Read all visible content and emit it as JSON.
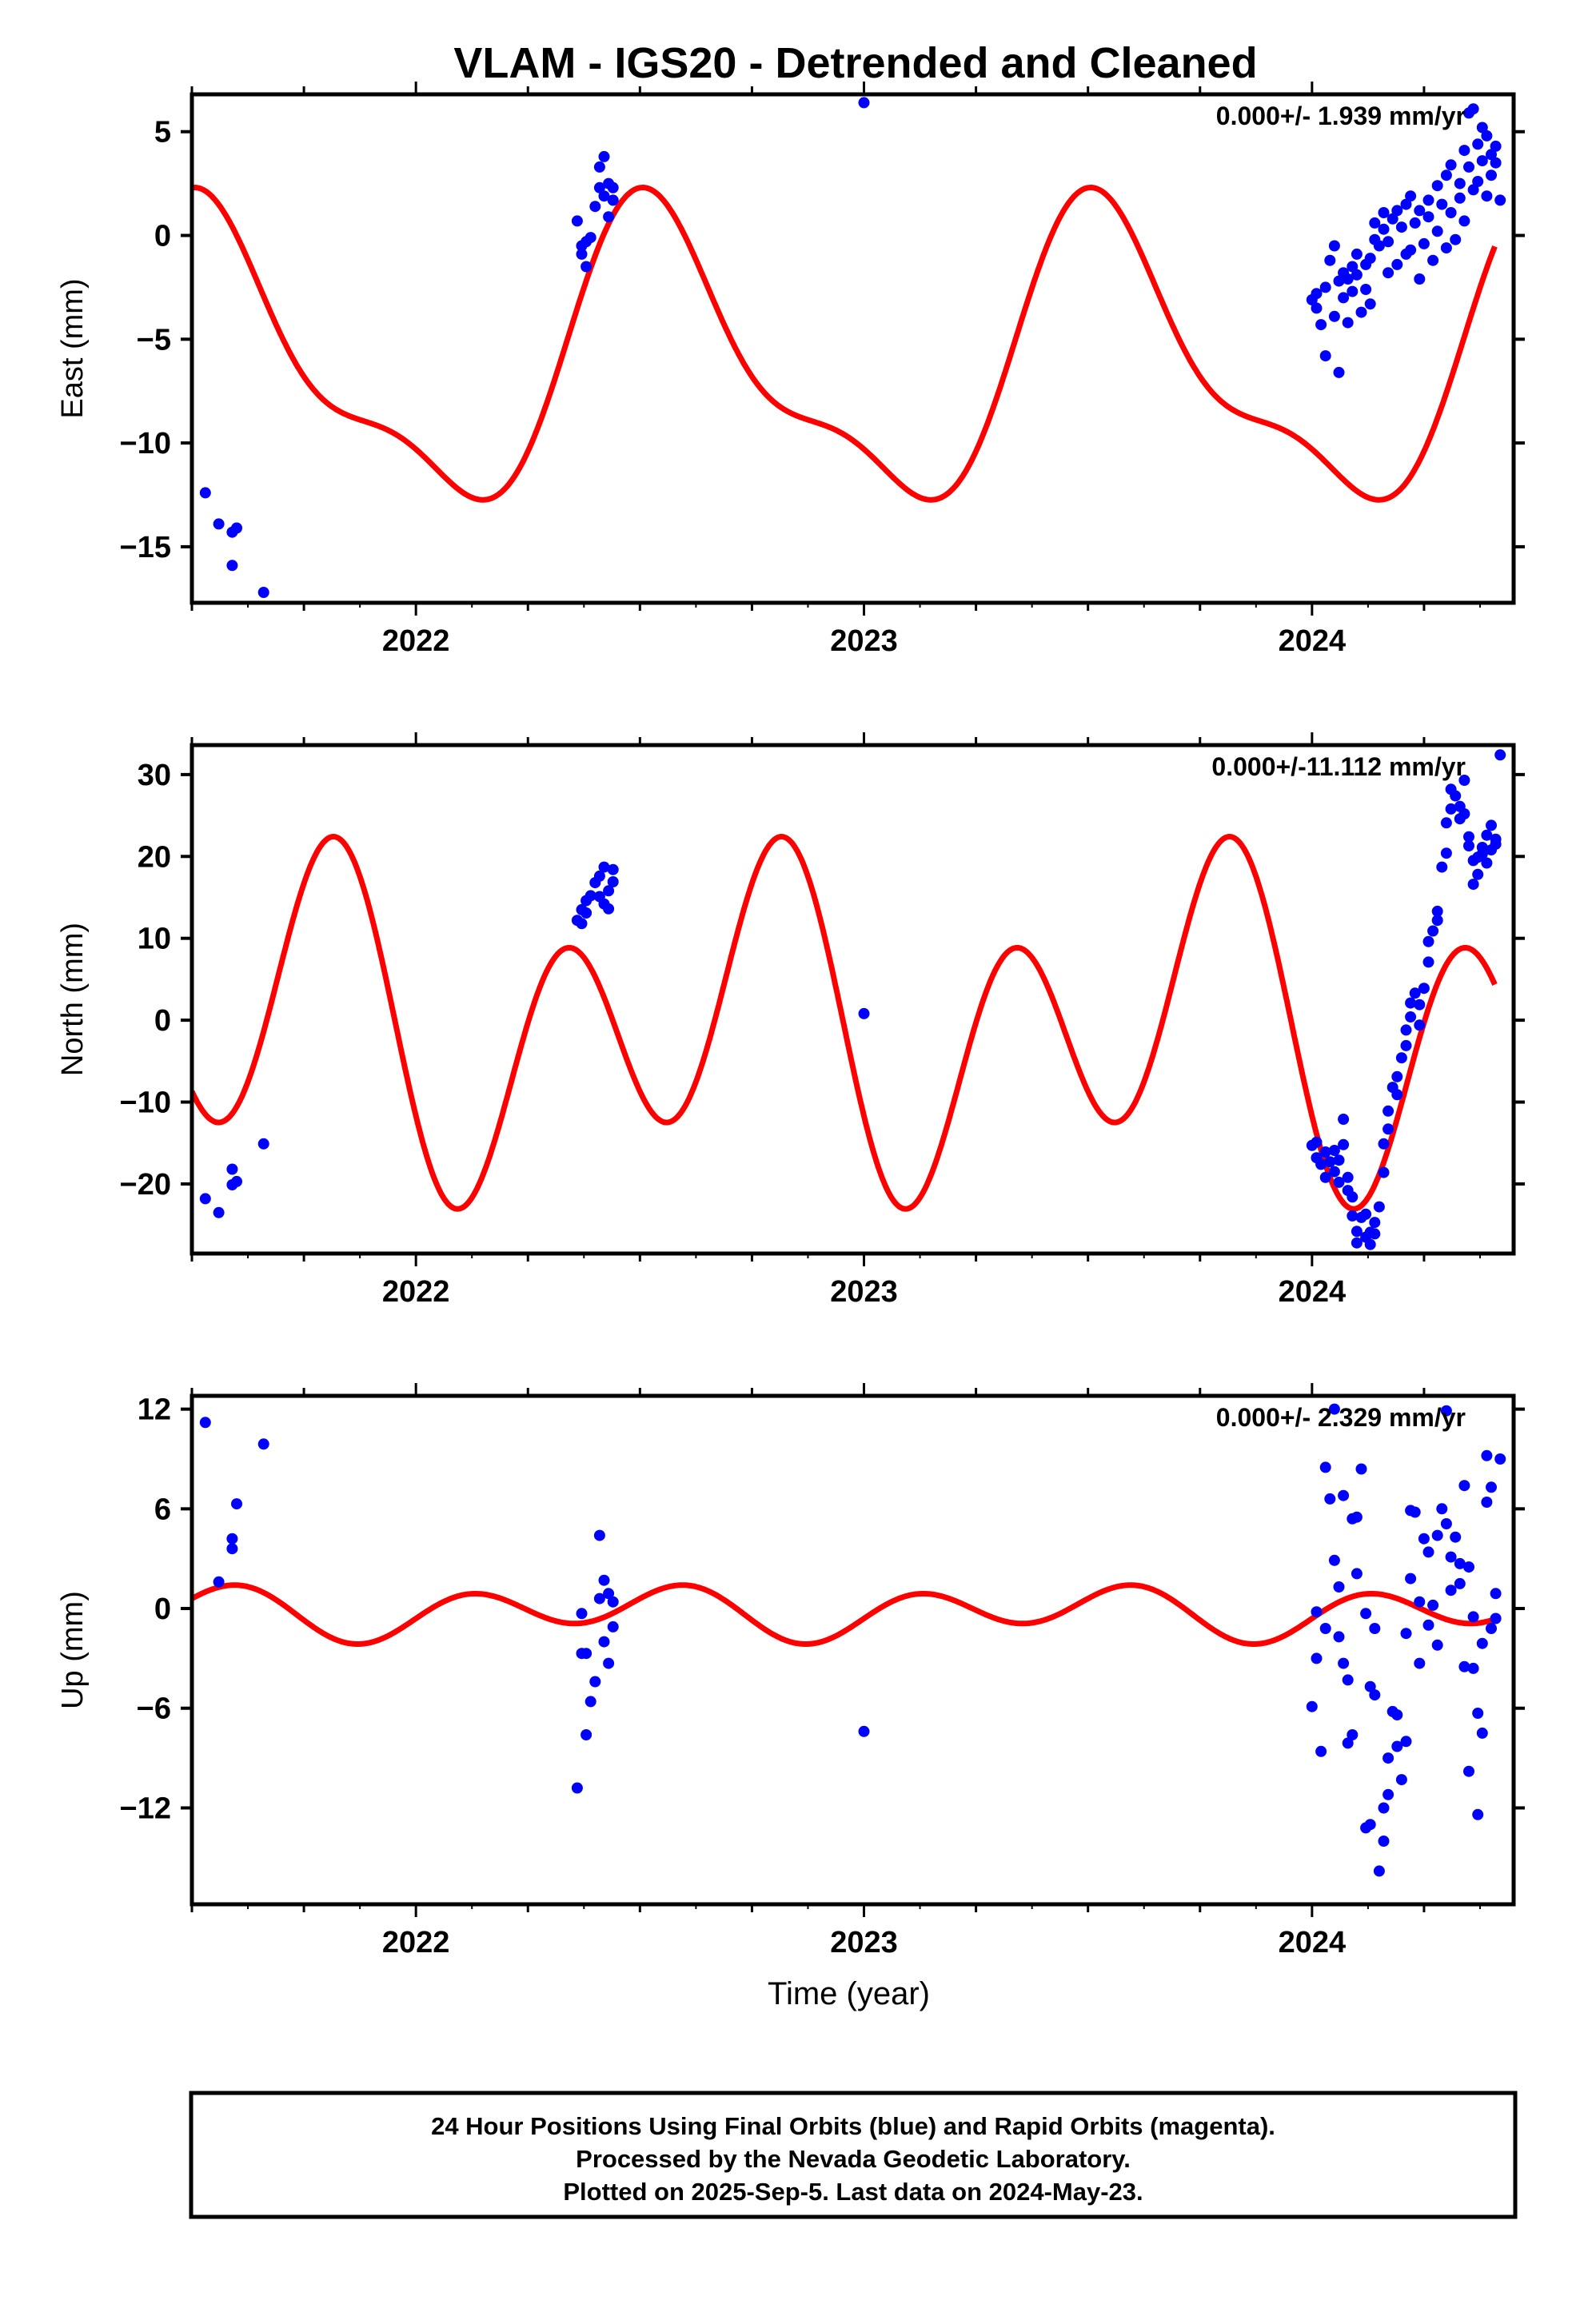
{
  "title": "VLAM - IGS20 - Detrended and Cleaned",
  "footer": {
    "lines": [
      "24 Hour Positions Using Final Orbits (blue) and Rapid Orbits (magenta).",
      "Processed by the Nevada Geodetic Laboratory.",
      "Plotted on 2025-Sep-5. Last data on 2024-May-23."
    ]
  },
  "colors": {
    "points": "#0000ff",
    "model": "#ff0000",
    "frame": "#000000"
  },
  "chart_data": [
    {
      "type": "scatter",
      "ylabel": "East (mm)",
      "xlabel": "",
      "rate_text": "0.000+/- 1.939 mm/yr",
      "xlim": [
        2021.5,
        2024.45
      ],
      "ylim": [
        -17.7,
        6.8
      ],
      "yticks": [
        5,
        0,
        -5,
        -10,
        -15
      ],
      "ytick_labels": [
        "5",
        "0",
        "−5",
        "−10",
        "−15"
      ],
      "xticks": [
        2022,
        2023,
        2024
      ],
      "xtick_labels": [
        "2022",
        "2023",
        "2024"
      ],
      "points_x": [
        2021.53,
        2021.56,
        2021.59,
        2021.59,
        2021.6,
        2021.66,
        2022.36,
        2022.37,
        2022.37,
        2022.38,
        2022.38,
        2022.39,
        2022.4,
        2022.41,
        2022.41,
        2022.42,
        2022.42,
        2022.43,
        2022.43,
        2022.44,
        2022.44,
        2023.0,
        2024.0,
        2024.01,
        2024.01,
        2024.02,
        2024.03,
        2024.03,
        2024.04,
        2024.05,
        2024.05,
        2024.06,
        2024.06,
        2024.07,
        2024.07,
        2024.08,
        2024.08,
        2024.09,
        2024.09,
        2024.1,
        2024.1,
        2024.11,
        2024.12,
        2024.12,
        2024.13,
        2024.13,
        2024.14,
        2024.14,
        2024.15,
        2024.16,
        2024.16,
        2024.17,
        2024.17,
        2024.18,
        2024.19,
        2024.19,
        2024.2,
        2024.21,
        2024.21,
        2024.22,
        2024.22,
        2024.23,
        2024.24,
        2024.24,
        2024.25,
        2024.26,
        2024.26,
        2024.27,
        2024.28,
        2024.28,
        2024.29,
        2024.3,
        2024.3,
        2024.31,
        2024.31,
        2024.32,
        2024.33,
        2024.33,
        2024.34,
        2024.34,
        2024.35,
        2024.35,
        2024.36,
        2024.36,
        2024.37,
        2024.37,
        2024.38,
        2024.38,
        2024.39,
        2024.39,
        2024.4,
        2024.4,
        2024.41,
        2024.41,
        2024.42
      ],
      "points_y": [
        -12.4,
        -13.9,
        -14.3,
        -15.9,
        -14.1,
        -17.2,
        0.7,
        -0.5,
        -0.9,
        -0.3,
        -1.5,
        -0.1,
        1.4,
        2.3,
        3.3,
        3.8,
        1.9,
        2.5,
        0.9,
        1.7,
        2.3,
        6.4,
        -3.1,
        -3.5,
        -2.8,
        -4.3,
        -5.8,
        -2.5,
        -1.2,
        -0.5,
        -3.9,
        -6.6,
        -2.2,
        -1.8,
        -3.0,
        -2.1,
        -4.2,
        -1.5,
        -2.7,
        -0.9,
        -1.9,
        -3.7,
        -1.4,
        -2.6,
        -1.1,
        -3.3,
        -0.2,
        0.6,
        -0.5,
        0.3,
        1.1,
        -0.3,
        -1.8,
        0.8,
        -1.4,
        1.2,
        0.4,
        -0.9,
        1.5,
        -0.7,
        1.9,
        0.6,
        -2.1,
        1.2,
        -0.4,
        1.7,
        0.9,
        -1.2,
        2.4,
        0.2,
        1.5,
        -0.6,
        2.9,
        1.1,
        3.4,
        -0.2,
        2.5,
        1.8,
        4.1,
        0.7,
        3.3,
        5.9,
        2.2,
        6.1,
        4.4,
        2.6,
        5.2,
        3.6,
        4.8,
        1.9,
        3.9,
        2.9,
        4.3,
        3.5,
        1.7
      ],
      "model": {
        "offset": -6.3,
        "a1": -6.3,
        "b1": -1.8,
        "a2": 2.3,
        "b2": -0.6,
        "t0": 2021.5,
        "t1": 2024.41
      }
    },
    {
      "type": "scatter",
      "ylabel": "North (mm)",
      "xlabel": "",
      "rate_text": "0.000+/-11.112 mm/yr",
      "xlim": [
        2021.5,
        2024.45
      ],
      "ylim": [
        -28.5,
        33.6
      ],
      "yticks": [
        30,
        20,
        10,
        0,
        -10,
        -20
      ],
      "ytick_labels": [
        "30",
        "20",
        "10",
        "0",
        "−10",
        "−20"
      ],
      "xticks": [
        2022,
        2023,
        2024
      ],
      "xtick_labels": [
        "2022",
        "2023",
        "2024"
      ],
      "points_x": [
        2021.53,
        2021.56,
        2021.59,
        2021.59,
        2021.6,
        2021.66,
        2022.36,
        2022.37,
        2022.37,
        2022.38,
        2022.38,
        2022.39,
        2022.4,
        2022.41,
        2022.41,
        2022.42,
        2022.42,
        2022.43,
        2022.43,
        2022.44,
        2022.44,
        2023.0,
        2024.0,
        2024.01,
        2024.01,
        2024.02,
        2024.03,
        2024.03,
        2024.04,
        2024.05,
        2024.05,
        2024.06,
        2024.06,
        2024.07,
        2024.07,
        2024.08,
        2024.08,
        2024.09,
        2024.09,
        2024.1,
        2024.1,
        2024.11,
        2024.12,
        2024.12,
        2024.13,
        2024.13,
        2024.14,
        2024.14,
        2024.15,
        2024.16,
        2024.16,
        2024.17,
        2024.17,
        2024.18,
        2024.19,
        2024.19,
        2024.2,
        2024.21,
        2024.21,
        2024.22,
        2024.22,
        2024.23,
        2024.24,
        2024.24,
        2024.25,
        2024.26,
        2024.26,
        2024.27,
        2024.28,
        2024.28,
        2024.29,
        2024.3,
        2024.3,
        2024.31,
        2024.31,
        2024.32,
        2024.33,
        2024.33,
        2024.34,
        2024.34,
        2024.35,
        2024.35,
        2024.36,
        2024.36,
        2024.37,
        2024.37,
        2024.38,
        2024.38,
        2024.39,
        2024.39,
        2024.4,
        2024.4,
        2024.41,
        2024.41,
        2024.42
      ],
      "points_y": [
        -21.8,
        -23.5,
        -20.1,
        -18.2,
        -19.7,
        -15.1,
        12.2,
        13.5,
        11.8,
        14.6,
        13.1,
        15.2,
        16.8,
        15.1,
        17.6,
        18.7,
        14.2,
        15.8,
        13.6,
        16.9,
        18.4,
        0.8,
        -15.3,
        -16.8,
        -14.9,
        -17.6,
        -19.2,
        -16.1,
        -17.3,
        -15.9,
        -18.5,
        -17.1,
        -19.8,
        -15.2,
        -12.1,
        -19.2,
        -20.8,
        -21.6,
        -23.9,
        -25.8,
        -27.2,
        -24.1,
        -26.5,
        -23.7,
        -25.9,
        -27.4,
        -26.1,
        -24.7,
        -22.8,
        -18.6,
        -15.1,
        -13.3,
        -11.1,
        -8.2,
        -6.9,
        -9.1,
        -4.6,
        -3.1,
        -1.2,
        0.4,
        2.1,
        3.3,
        1.9,
        -0.6,
        3.9,
        7.1,
        9.6,
        10.9,
        12.2,
        13.3,
        18.7,
        20.4,
        24.1,
        25.8,
        28.2,
        27.4,
        26.1,
        24.6,
        29.3,
        25.2,
        22.4,
        21.3,
        19.5,
        16.6,
        19.9,
        17.8,
        21.1,
        20.3,
        22.6,
        19.2,
        23.8,
        20.8,
        22.1,
        21.5,
        32.4
      ],
      "model": {
        "offset": -1.0,
        "a1": -1.5,
        "b1": -8.5,
        "a2": -9.2,
        "b2": -13.6,
        "t0": 2021.5,
        "t1": 2024.41
      }
    },
    {
      "type": "scatter",
      "ylabel": "Up (mm)",
      "xlabel": "Time (year)",
      "rate_text": "0.000+/- 2.329 mm/yr",
      "xlim": [
        2021.5,
        2024.45
      ],
      "ylim": [
        -17.8,
        12.8
      ],
      "yticks": [
        12,
        6,
        0,
        -6,
        -12
      ],
      "ytick_labels": [
        "12",
        "6",
        "0",
        "−6",
        "−12"
      ],
      "xticks": [
        2022,
        2023,
        2024
      ],
      "xtick_labels": [
        "2022",
        "2023",
        "2024"
      ],
      "points_x": [
        2021.53,
        2021.56,
        2021.59,
        2021.59,
        2021.6,
        2021.66,
        2022.36,
        2022.37,
        2022.37,
        2022.38,
        2022.38,
        2022.39,
        2022.4,
        2022.41,
        2022.41,
        2022.42,
        2022.42,
        2022.43,
        2022.43,
        2022.44,
        2022.44,
        2023.0,
        2024.0,
        2024.01,
        2024.01,
        2024.02,
        2024.03,
        2024.03,
        2024.04,
        2024.05,
        2024.05,
        2024.06,
        2024.06,
        2024.07,
        2024.07,
        2024.08,
        2024.08,
        2024.09,
        2024.09,
        2024.1,
        2024.1,
        2024.11,
        2024.12,
        2024.12,
        2024.13,
        2024.13,
        2024.14,
        2024.14,
        2024.15,
        2024.16,
        2024.16,
        2024.17,
        2024.17,
        2024.18,
        2024.19,
        2024.19,
        2024.2,
        2024.21,
        2024.21,
        2024.22,
        2024.22,
        2024.23,
        2024.24,
        2024.24,
        2024.25,
        2024.26,
        2024.26,
        2024.27,
        2024.28,
        2024.28,
        2024.29,
        2024.3,
        2024.3,
        2024.31,
        2024.31,
        2024.32,
        2024.33,
        2024.33,
        2024.34,
        2024.34,
        2024.35,
        2024.35,
        2024.36,
        2024.36,
        2024.37,
        2024.37,
        2024.38,
        2024.38,
        2024.39,
        2024.39,
        2024.4,
        2024.4,
        2024.41,
        2024.41,
        2024.42
      ],
      "points_y": [
        11.2,
        1.6,
        3.6,
        4.2,
        6.3,
        9.9,
        -10.8,
        -2.7,
        -0.3,
        -7.6,
        -2.7,
        -5.6,
        -4.4,
        0.6,
        4.4,
        1.7,
        -2.0,
        0.9,
        -3.3,
        0.4,
        -1.1,
        -7.4,
        -5.9,
        -0.2,
        -3.0,
        -8.6,
        8.5,
        -1.2,
        6.6,
        2.9,
        12.0,
        -1.7,
        1.3,
        6.8,
        -3.3,
        -4.3,
        -8.1,
        -7.6,
        5.4,
        5.5,
        2.1,
        8.4,
        -0.3,
        -13.2,
        -4.7,
        -13.0,
        -1.2,
        -5.2,
        -15.8,
        -14.0,
        -12.0,
        -11.2,
        -9.0,
        -6.2,
        -6.4,
        -8.3,
        -10.3,
        -8.0,
        -1.5,
        1.8,
        5.9,
        5.8,
        0.4,
        -3.3,
        4.2,
        -1.0,
        3.4,
        0.2,
        -2.2,
        4.4,
        6.0,
        5.1,
        11.9,
        3.1,
        1.1,
        4.3,
        1.5,
        2.7,
        7.4,
        -3.5,
        -9.8,
        2.5,
        -0.5,
        -3.6,
        -12.4,
        -6.3,
        -2.1,
        -7.5,
        9.2,
        6.4,
        7.3,
        -1.2,
        0.9,
        -0.6,
        9.0
      ],
      "model": {
        "offset": -0.2,
        "a1": -0.6,
        "b1": 0.3,
        "a2": 0.2,
        "b2": 1.3,
        "t0": 2021.5,
        "t1": 2024.41
      }
    }
  ]
}
